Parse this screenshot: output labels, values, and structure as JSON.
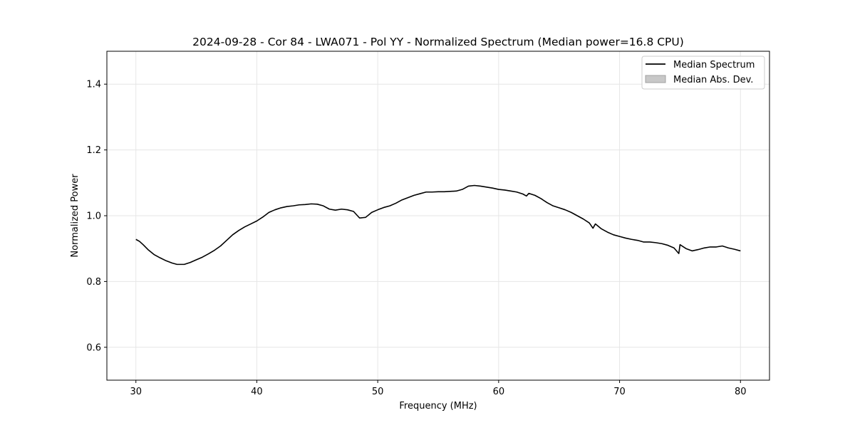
{
  "chart_data": {
    "type": "line",
    "title": "2024-09-28 - Cor 84 - LWA071 - Pol YY - Normalized Spectrum (Median power=16.8 CPU)",
    "xlabel": "Frequency (MHz)",
    "ylabel": "Normalized Power",
    "xlim": [
      27.6,
      82.4
    ],
    "ylim": [
      0.5,
      1.5
    ],
    "xticks": [
      30,
      40,
      50,
      60,
      70,
      80
    ],
    "yticks": [
      0.6,
      0.8,
      1.0,
      1.2,
      1.4
    ],
    "xtick_labels": [
      "30",
      "40",
      "50",
      "60",
      "70",
      "80"
    ],
    "ytick_labels": [
      "0.6",
      "0.8",
      "1.0",
      "1.2",
      "1.4"
    ],
    "grid": true,
    "legend": {
      "placement": "top-right",
      "entries": [
        "Median Spectrum",
        "Median Abs. Dev."
      ]
    },
    "series": [
      {
        "name": "Median Spectrum",
        "color": "#000000",
        "x": [
          30.0,
          30.3,
          30.6,
          31.0,
          31.5,
          32.0,
          32.5,
          33.0,
          33.4,
          34.0,
          34.5,
          35.0,
          35.5,
          36.0,
          36.5,
          37.0,
          37.5,
          38.0,
          38.5,
          39.0,
          39.5,
          40.0,
          40.5,
          41.0,
          41.5,
          42.0,
          42.5,
          43.0,
          43.5,
          44.0,
          44.5,
          45.0,
          45.5,
          46.0,
          46.5,
          47.0,
          47.5,
          48.0,
          48.5,
          49.0,
          49.5,
          50.0,
          50.5,
          51.0,
          51.5,
          52.0,
          52.5,
          53.0,
          53.5,
          54.0,
          54.5,
          55.0,
          55.5,
          56.0,
          56.5,
          57.0,
          57.5,
          58.0,
          58.5,
          59.0,
          59.5,
          60.0,
          60.5,
          61.0,
          61.5,
          62.0,
          62.3,
          62.5,
          63.0,
          63.5,
          64.0,
          64.5,
          65.0,
          65.5,
          66.0,
          66.5,
          67.0,
          67.5,
          67.8,
          68.0,
          68.5,
          69.0,
          69.5,
          70.0,
          70.5,
          71.0,
          71.5,
          72.0,
          72.5,
          73.0,
          73.5,
          74.0,
          74.5,
          74.9,
          75.0,
          75.5,
          76.0,
          76.5,
          77.0,
          77.5,
          78.0,
          78.5,
          79.0,
          79.5,
          80.0
        ],
        "y": [
          0.928,
          0.922,
          0.912,
          0.897,
          0.882,
          0.872,
          0.863,
          0.856,
          0.852,
          0.852,
          0.858,
          0.866,
          0.874,
          0.884,
          0.895,
          0.908,
          0.925,
          0.942,
          0.955,
          0.966,
          0.975,
          0.984,
          0.996,
          1.01,
          1.018,
          1.024,
          1.028,
          1.03,
          1.033,
          1.034,
          1.036,
          1.035,
          1.03,
          1.02,
          1.017,
          1.02,
          1.018,
          1.013,
          0.993,
          0.995,
          1.01,
          1.018,
          1.025,
          1.03,
          1.038,
          1.048,
          1.055,
          1.062,
          1.067,
          1.072,
          1.072,
          1.073,
          1.073,
          1.074,
          1.075,
          1.08,
          1.09,
          1.092,
          1.09,
          1.087,
          1.084,
          1.08,
          1.078,
          1.075,
          1.072,
          1.066,
          1.06,
          1.068,
          1.062,
          1.052,
          1.04,
          1.03,
          1.024,
          1.018,
          1.01,
          1.0,
          0.99,
          0.978,
          0.962,
          0.975,
          0.96,
          0.95,
          0.942,
          0.937,
          0.932,
          0.928,
          0.925,
          0.92,
          0.92,
          0.918,
          0.915,
          0.91,
          0.902,
          0.885,
          0.912,
          0.9,
          0.893,
          0.897,
          0.902,
          0.905,
          0.905,
          0.908,
          0.902,
          0.898,
          0.893
        ]
      }
    ]
  }
}
